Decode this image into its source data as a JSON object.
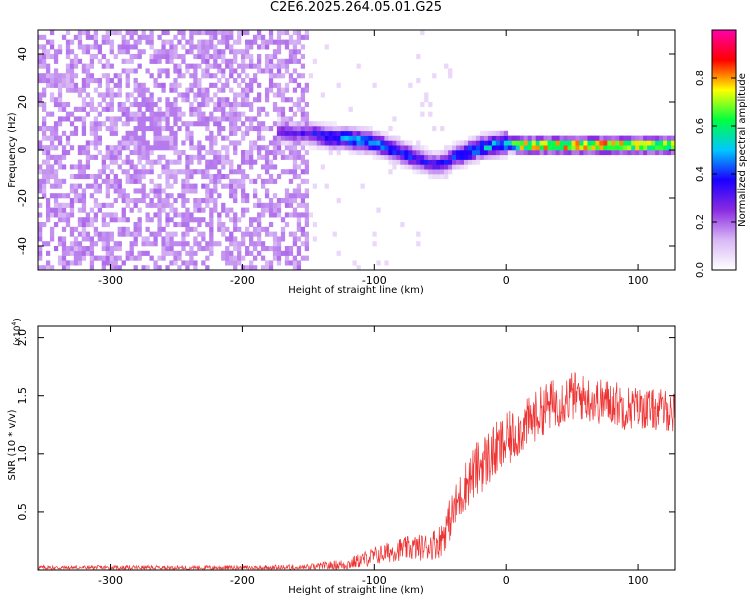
{
  "title": "C2E6.2025.264.05.01.G25",
  "chart_data": [
    {
      "type": "heatmap",
      "title": "C2E6.2025.264.05.01.G25",
      "xlabel": "Height of straight line (km)",
      "ylabel": "Frequency (Hz)",
      "xlim": [
        -355,
        128
      ],
      "ylim": [
        -50,
        50
      ],
      "xticks": [
        -300,
        -200,
        -100,
        0,
        100
      ],
      "yticks": [
        -40,
        -20,
        0,
        20,
        40
      ],
      "xtick_labels": [
        "-300",
        "-200",
        "-100",
        "0",
        "100"
      ],
      "ytick_labels": [
        "-40",
        "-20",
        "0",
        "20",
        "40"
      ],
      "grid": false,
      "colorbar": {
        "label": "Normalized spectral amplitude",
        "range": [
          0,
          1
        ],
        "ticks": [
          0,
          0.2,
          0.4,
          0.6,
          0.8
        ],
        "tick_labels": [
          "0.0",
          "0.2",
          "0.4",
          "0.6",
          "0.8"
        ],
        "colormap": [
          "#ffffff",
          "#d9b8f5",
          "#8a2be2",
          "#1a00ff",
          "#00c8ff",
          "#00ff40",
          "#ffff00",
          "#ff0000",
          "#ff00aa"
        ]
      },
      "ridge_frequency": {
        "x": [
          -175,
          -160,
          -150,
          -140,
          -130,
          -120,
          -110,
          -100,
          -90,
          -80,
          -70,
          -60,
          -55,
          -50,
          -45,
          -40,
          -30,
          -20,
          -10,
          0,
          10,
          20,
          40,
          60,
          80,
          100,
          128
        ],
        "y": [
          8,
          7,
          7,
          6,
          5,
          5,
          4,
          3,
          1,
          -1,
          -3,
          -5,
          -6,
          -6,
          -5,
          -3,
          -1,
          1,
          2,
          3,
          2,
          2,
          2,
          2,
          2,
          2,
          2
        ]
      },
      "ridge_amplitude": {
        "x": [
          -175,
          -150,
          -130,
          -110,
          -90,
          -70,
          -55,
          -40,
          -20,
          0,
          10,
          40,
          80,
          128
        ],
        "y": [
          0.25,
          0.35,
          0.45,
          0.5,
          0.45,
          0.4,
          0.35,
          0.4,
          0.5,
          0.55,
          0.85,
          0.9,
          0.9,
          0.85
        ]
      },
      "noise_region": {
        "x_range": [
          -355,
          -150
        ],
        "level": 0.1,
        "extra_frequency_x": [
          -290,
          -250
        ]
      }
    },
    {
      "type": "line",
      "xlabel": "Height of straight line (km)",
      "ylabel": "SNR (10 * v/v)",
      "y_multiplier_label": "(x10^4)",
      "xlim": [
        -355,
        128
      ],
      "ylim": [
        0,
        2.1
      ],
      "xticks": [
        -300,
        -200,
        -100,
        0,
        100
      ],
      "yticks": [
        0.5,
        1.0,
        1.5,
        2.0
      ],
      "xtick_labels": [
        "-300",
        "-200",
        "-100",
        "0",
        "100"
      ],
      "ytick_labels": [
        "0.5",
        "1.0",
        "1.5",
        "2.0"
      ],
      "grid": false,
      "series": [
        {
          "color": "#ee3333",
          "x": [
            -355,
            -300,
            -250,
            -200,
            -150,
            -120,
            -100,
            -80,
            -60,
            -50,
            -40,
            -30,
            -20,
            -10,
            0,
            10,
            20,
            30,
            40,
            50,
            60,
            70,
            80,
            90,
            100,
            110,
            120,
            128
          ],
          "y": [
            0.02,
            0.02,
            0.02,
            0.02,
            0.02,
            0.05,
            0.12,
            0.18,
            0.2,
            0.25,
            0.5,
            0.75,
            0.9,
            1.0,
            1.1,
            1.2,
            1.3,
            1.4,
            1.45,
            1.5,
            1.48,
            1.45,
            1.45,
            1.4,
            1.4,
            1.38,
            1.38,
            1.35
          ],
          "noise_amplitude": [
            0.02,
            0.02,
            0.02,
            0.02,
            0.03,
            0.05,
            0.08,
            0.1,
            0.12,
            0.15,
            0.2,
            0.22,
            0.25,
            0.25,
            0.25,
            0.22,
            0.22,
            0.22,
            0.22,
            0.22,
            0.2,
            0.2,
            0.2,
            0.2,
            0.18,
            0.18,
            0.18,
            0.18
          ]
        }
      ]
    }
  ]
}
